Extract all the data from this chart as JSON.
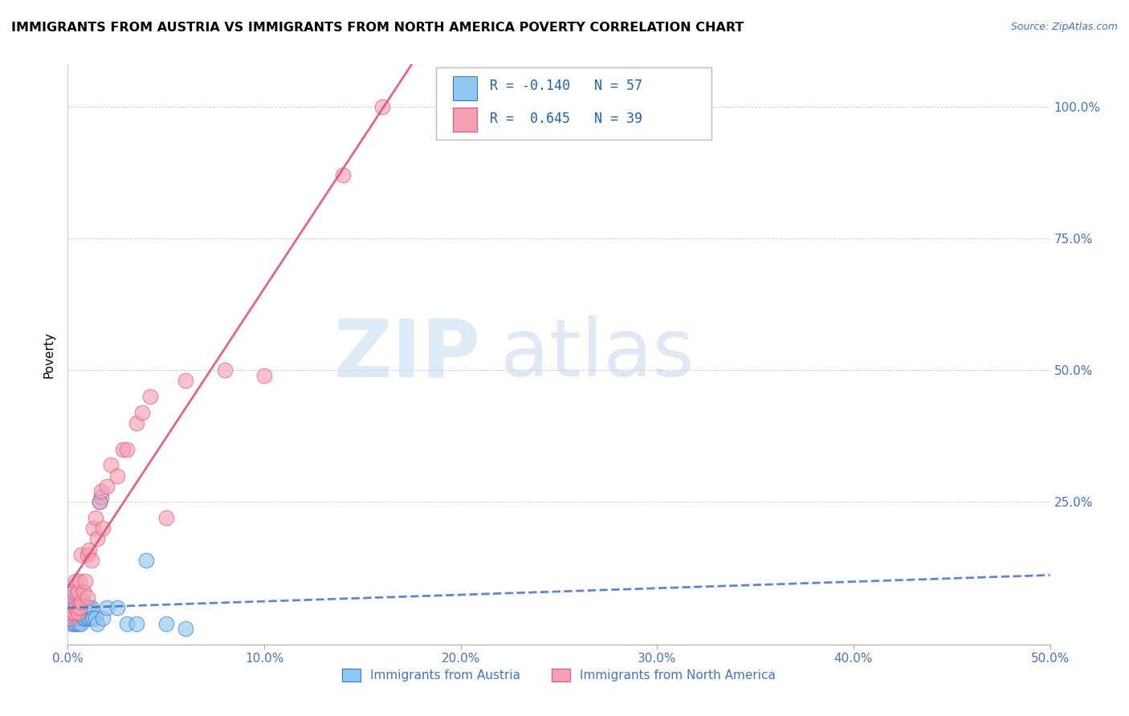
{
  "title": "IMMIGRANTS FROM AUSTRIA VS IMMIGRANTS FROM NORTH AMERICA POVERTY CORRELATION CHART",
  "source": "Source: ZipAtlas.com",
  "ylabel": "Poverty",
  "xlim": [
    0.0,
    0.5
  ],
  "ylim": [
    -0.02,
    1.08
  ],
  "xtick_labels": [
    "0.0%",
    "10.0%",
    "20.0%",
    "30.0%",
    "40.0%",
    "50.0%"
  ],
  "xtick_vals": [
    0.0,
    0.1,
    0.2,
    0.3,
    0.4,
    0.5
  ],
  "ytick_labels": [
    "25.0%",
    "50.0%",
    "75.0%",
    "100.0%"
  ],
  "ytick_vals": [
    0.25,
    0.5,
    0.75,
    1.0
  ],
  "color_austria": "#8FC8F0",
  "color_north_america": "#F5A0B5",
  "color_austria_line": "#4472C4",
  "color_north_america_line": "#E05575",
  "R_austria": -0.14,
  "N_austria": 57,
  "R_north_america": 0.645,
  "N_north_america": 39,
  "legend_label_austria": "Immigrants from Austria",
  "legend_label_north_america": "Immigrants from North America",
  "austria_x": [
    0.001,
    0.001,
    0.001,
    0.001,
    0.001,
    0.002,
    0.002,
    0.002,
    0.002,
    0.002,
    0.003,
    0.003,
    0.003,
    0.003,
    0.003,
    0.003,
    0.004,
    0.004,
    0.004,
    0.004,
    0.005,
    0.005,
    0.005,
    0.005,
    0.005,
    0.005,
    0.006,
    0.006,
    0.006,
    0.006,
    0.007,
    0.007,
    0.007,
    0.008,
    0.008,
    0.008,
    0.009,
    0.009,
    0.01,
    0.01,
    0.011,
    0.011,
    0.012,
    0.012,
    0.013,
    0.014,
    0.015,
    0.016,
    0.017,
    0.018,
    0.02,
    0.025,
    0.03,
    0.035,
    0.04,
    0.05,
    0.06
  ],
  "austria_y": [
    0.04,
    0.05,
    0.06,
    0.07,
    0.08,
    0.02,
    0.03,
    0.05,
    0.06,
    0.07,
    0.02,
    0.03,
    0.04,
    0.05,
    0.06,
    0.07,
    0.02,
    0.03,
    0.04,
    0.06,
    0.02,
    0.03,
    0.04,
    0.05,
    0.06,
    0.07,
    0.02,
    0.03,
    0.05,
    0.06,
    0.02,
    0.04,
    0.05,
    0.03,
    0.05,
    0.06,
    0.03,
    0.05,
    0.03,
    0.05,
    0.03,
    0.05,
    0.03,
    0.05,
    0.03,
    0.03,
    0.02,
    0.25,
    0.26,
    0.03,
    0.05,
    0.05,
    0.02,
    0.02,
    0.14,
    0.02,
    0.01
  ],
  "north_america_x": [
    0.001,
    0.002,
    0.002,
    0.003,
    0.003,
    0.004,
    0.004,
    0.005,
    0.005,
    0.006,
    0.006,
    0.007,
    0.007,
    0.008,
    0.009,
    0.01,
    0.01,
    0.011,
    0.012,
    0.013,
    0.014,
    0.015,
    0.016,
    0.017,
    0.018,
    0.02,
    0.022,
    0.025,
    0.028,
    0.03,
    0.035,
    0.038,
    0.042,
    0.05,
    0.06,
    0.08,
    0.1,
    0.14,
    0.16
  ],
  "north_america_y": [
    0.03,
    0.04,
    0.06,
    0.04,
    0.08,
    0.05,
    0.1,
    0.04,
    0.08,
    0.05,
    0.1,
    0.06,
    0.15,
    0.08,
    0.1,
    0.07,
    0.15,
    0.16,
    0.14,
    0.2,
    0.22,
    0.18,
    0.25,
    0.27,
    0.2,
    0.28,
    0.32,
    0.3,
    0.35,
    0.35,
    0.4,
    0.42,
    0.45,
    0.22,
    0.48,
    0.5,
    0.49,
    0.87,
    1.0
  ]
}
